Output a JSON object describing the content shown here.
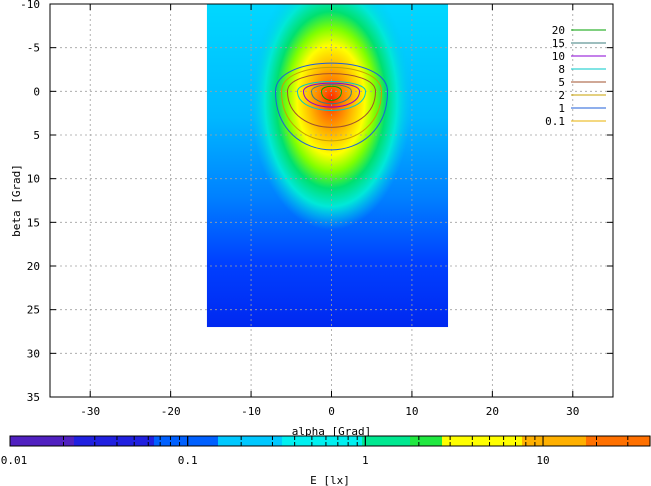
{
  "chart_data": {
    "type": "heatmap",
    "xlabel": "alpha [Grad]",
    "ylabel": "beta [Grad]",
    "xlim": [
      -35,
      35
    ],
    "ylim": [
      35,
      -10
    ],
    "x_ticks": [
      -30,
      -20,
      -10,
      0,
      10,
      20,
      30
    ],
    "y_ticks": [
      -10,
      -5,
      0,
      5,
      10,
      15,
      20,
      25,
      30,
      35
    ],
    "grid": true,
    "data_extent": {
      "alpha": [
        -15.5,
        14.5
      ],
      "beta": [
        -10,
        27
      ]
    },
    "peak": {
      "alpha": 0,
      "beta": 0,
      "value": 30
    },
    "contours": {
      "levels": [
        20,
        15,
        10,
        8,
        5,
        2,
        1,
        0.1
      ],
      "legend_placement": "top-right",
      "colors": [
        "#00a000",
        "#3b7d7d",
        "#8a00d4",
        "#00c8c8",
        "#a0522d",
        "#c8a000",
        "#1f5fd8",
        "#e8b000"
      ]
    },
    "colorbar": {
      "label": "E [lx]",
      "scale": "log",
      "range": [
        0.01,
        40
      ],
      "tick_labels": [
        "0.01",
        "0.1",
        "1",
        "10"
      ]
    }
  }
}
